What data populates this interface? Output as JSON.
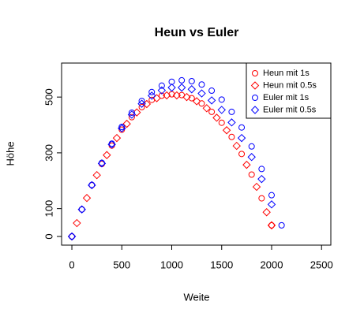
{
  "chart_data": {
    "type": "scatter",
    "title": "Heun vs Euler",
    "x_label": "Weite",
    "y_label": "Höhe",
    "xlim": [
      -103,
      2593
    ],
    "ylim": [
      -31,
      622
    ],
    "xticks": [
      0,
      500,
      1000,
      1500,
      2000,
      2500
    ],
    "yticks": [
      0,
      100,
      300,
      500
    ],
    "legend": "topright",
    "series": [
      {
        "name": "Heun mit 1s",
        "color": "#ff0000",
        "marker": "circle",
        "x": [
          0,
          100,
          200,
          300,
          400,
          500,
          600,
          700,
          800,
          900,
          1000,
          1100,
          1200,
          1300,
          1400,
          1500,
          1600,
          1700,
          1800,
          1900,
          2000
        ],
        "values": [
          0,
          97,
          184,
          260,
          326,
          383,
          428,
          464,
          490,
          505,
          510,
          507,
          496,
          477,
          447,
          408,
          357,
          296,
          222,
          137,
          40
        ]
      },
      {
        "name": "Heun mit 0.5s",
        "color": "#ff0000",
        "marker": "diamond",
        "x": [
          0,
          50,
          150,
          250,
          350,
          450,
          550,
          650,
          750,
          850,
          950,
          1050,
          1150,
          1250,
          1350,
          1450,
          1550,
          1650,
          1750,
          1850,
          1950,
          2000
        ],
        "values": [
          0,
          48,
          138,
          220,
          292,
          353,
          404,
          445,
          475,
          496,
          506,
          506,
          500,
          485,
          460,
          426,
          381,
          325,
          257,
          178,
          87,
          40
        ]
      },
      {
        "name": "Euler mit 1s",
        "color": "#0000ff",
        "marker": "circle",
        "x": [
          0,
          100,
          200,
          300,
          400,
          500,
          600,
          700,
          800,
          900,
          1000,
          1100,
          1200,
          1300,
          1400,
          1500,
          1600,
          1700,
          1800,
          1900,
          2000,
          2100
        ],
        "values": [
          0,
          97,
          185,
          264,
          333,
          393,
          444,
          486,
          518,
          541,
          555,
          560,
          557,
          545,
          523,
          491,
          447,
          391,
          323,
          242,
          148,
          40
        ]
      },
      {
        "name": "Euler mit 0.5s",
        "color": "#0000ff",
        "marker": "diamond",
        "x": [
          0,
          100,
          200,
          300,
          400,
          500,
          600,
          700,
          800,
          900,
          1000,
          1100,
          1200,
          1300,
          1400,
          1500,
          1600,
          1700,
          1800,
          1900,
          2000
        ],
        "values": [
          0,
          97,
          184,
          262,
          330,
          388,
          437,
          476,
          505,
          524,
          534,
          534,
          528,
          513,
          488,
          454,
          409,
          353,
          285,
          206,
          115
        ]
      }
    ]
  }
}
